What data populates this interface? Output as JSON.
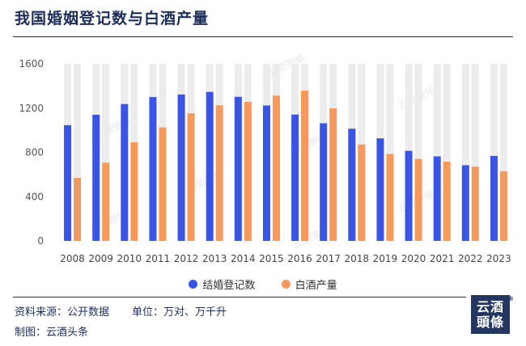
{
  "title": "我国婚姻登记数与白酒产量",
  "legend": {
    "marriage": "结婚登记数",
    "liquor": "白酒产量"
  },
  "footer": {
    "source_label": "资料来源：",
    "source_value": "公开数据",
    "unit_label": "单位：",
    "unit_value": "万对、万千升",
    "maker_label": "制图：",
    "maker_value": "云酒头条"
  },
  "logo": {
    "line1": "云酒",
    "line2": "頭條",
    "mark": "®",
    "watermark": "云酒頭條"
  },
  "colors": {
    "marriage": "#3b54e8",
    "liquor": "#f59a5c",
    "track": "#ececec",
    "brand": "#1d2e5a"
  },
  "chart_data": {
    "type": "bar",
    "categories": [
      "2008",
      "2009",
      "2010",
      "2011",
      "2012",
      "2013",
      "2014",
      "2015",
      "2016",
      "2017",
      "2018",
      "2019",
      "2020",
      "2021",
      "2022",
      "2023"
    ],
    "series": [
      {
        "name": "结婚登记数",
        "values": [
          1046,
          1140,
          1237,
          1300,
          1323,
          1347,
          1302,
          1224,
          1142,
          1063,
          1014,
          927,
          814,
          764,
          684,
          768
        ]
      },
      {
        "name": "白酒产量",
        "values": [
          570,
          707,
          891,
          1026,
          1153,
          1226,
          1257,
          1313,
          1358,
          1198,
          871,
          786,
          741,
          716,
          671,
          629
        ]
      }
    ],
    "yticks": [
      0,
      400,
      800,
      1200,
      1600
    ],
    "ylim": [
      0,
      1600
    ],
    "grid": false,
    "background_track": true,
    "legend_position": "bottom"
  }
}
